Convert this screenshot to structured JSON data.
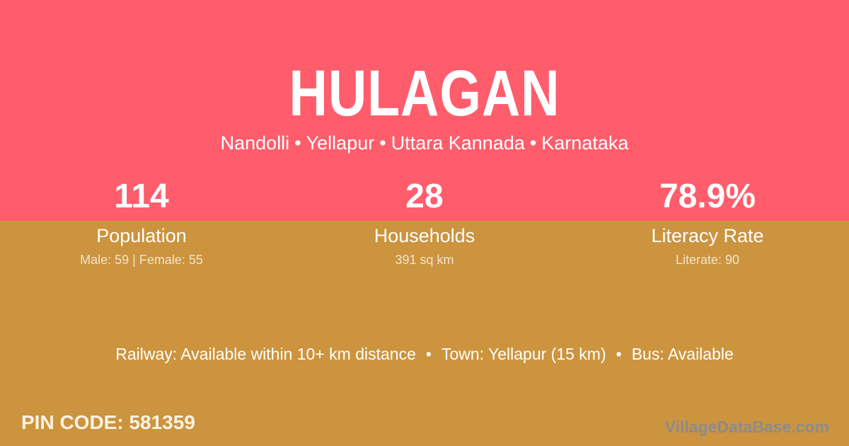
{
  "colors": {
    "pink": "#FF5D6C",
    "gold": "#CC943E",
    "white": "#FFFFFF",
    "cream": "#FAF3E4",
    "watermark-gray": "#8B8B90"
  },
  "header": {
    "title": "HULAGAN",
    "breadcrumb": [
      "Nandolli",
      "Yellapur",
      "Uttara Kannada",
      "Karnataka"
    ],
    "separator": "•"
  },
  "stats": [
    {
      "value": "114",
      "label": "Population",
      "sublabel": "Male: 59 | Female: 55"
    },
    {
      "value": "28",
      "label": "Households",
      "sublabel": "391 sq km"
    },
    {
      "value": "78.9%",
      "label": "Literacy Rate",
      "sublabel": "Literate: 90"
    }
  ],
  "transport": {
    "items": [
      "Railway: Available within 10+ km distance",
      "Town: Yellapur (15 km)",
      "Bus: Available"
    ],
    "separator": "•"
  },
  "footer": {
    "pin_code_label": "PIN CODE:",
    "pin_code_value": "581359",
    "watermark": "VillageDataBase.com"
  }
}
